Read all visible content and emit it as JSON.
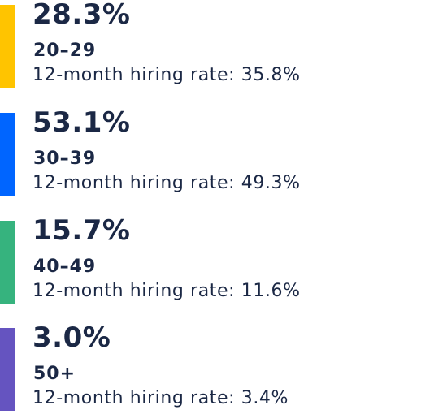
{
  "chart_data": {
    "type": "bar",
    "categories": [
      "20–29",
      "30–39",
      "40–49",
      "50+"
    ],
    "values": [
      28.3,
      53.1,
      15.7,
      3.0
    ],
    "value_labels": [
      "28.3%",
      "53.1%",
      "15.7%",
      "3.0%"
    ],
    "hiring_rates": [
      35.8,
      49.3,
      11.6,
      3.4
    ],
    "hiring_rate_labels": [
      "12-month hiring rate: 35.8%",
      "12-month hiring rate: 49.3%",
      "12-month hiring rate: 11.6%",
      "12-month hiring rate: 3.4%"
    ],
    "colors": [
      "#ffc400",
      "#0065ff",
      "#36b37e",
      "#6554c0"
    ]
  }
}
